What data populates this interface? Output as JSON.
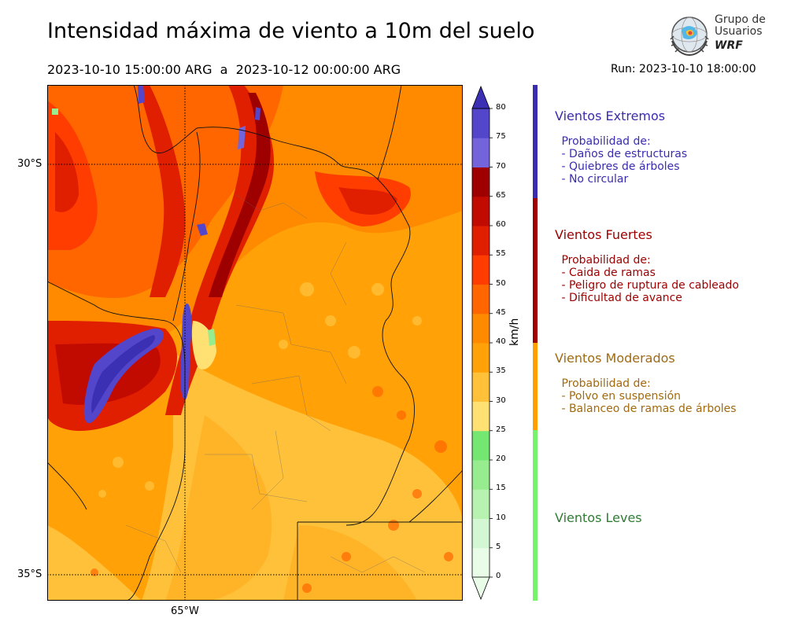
{
  "header": {
    "title": "Intensidad máxima de viento a 10m del suelo",
    "period_start": "2023-10-10 15:00:00 ARG",
    "period_sep": "a",
    "period_end": "2023-10-12 00:00:00 ARG",
    "run": "Run: 2023-10-10 18:00:00"
  },
  "logo": {
    "line1": "Grupo de",
    "line2": "Usuarios",
    "line3": "WRF"
  },
  "map": {
    "lat_labels": [
      "30°S",
      "35°S"
    ],
    "lon_labels": [
      "65°W"
    ]
  },
  "colorbar": {
    "units": "km/h",
    "ticks": [
      "80",
      "75",
      "70",
      "65",
      "60",
      "55",
      "50",
      "45",
      "40",
      "35",
      "30",
      "25",
      "20",
      "15",
      "10",
      "5",
      "0"
    ],
    "colors": [
      "#e8fce8",
      "#d2f7d2",
      "#b8f2b0",
      "#98ec90",
      "#74e672",
      "#ffe173",
      "#ffc13a",
      "#ffa107",
      "#ff8a00",
      "#ff6600",
      "#ff3d00",
      "#e01e00",
      "#c10a00",
      "#9e0000",
      "#7464dc",
      "#5446cb",
      "#3b2fb3"
    ]
  },
  "categories": [
    {
      "title": "Vientos Extremos",
      "color": "#3a2cb0",
      "bar_color": "#3a2cb0",
      "lines": [
        " Probabilidad de:",
        " - Daños de estructuras",
        " - Quiebres de árboles",
        " - No circular"
      ]
    },
    {
      "title": "Vientos Fuertes",
      "color": "#9c0000",
      "bar_color": "#a00000",
      "lines": [
        " Probabilidad de:",
        " - Caida de ramas",
        " - Peligro de ruptura de cableado",
        " - Dificultad de avance"
      ]
    },
    {
      "title": "Vientos Moderados",
      "color": "#a06a10",
      "bar_color": "#ffa000",
      "lines": [
        " Probabilidad de:",
        " - Polvo en suspensión",
        " - Balanceo de ramas de árboles"
      ]
    },
    {
      "title": "Vientos Leves",
      "color": "#2e7d32",
      "bar_color": "#77f26b",
      "lines": []
    }
  ]
}
